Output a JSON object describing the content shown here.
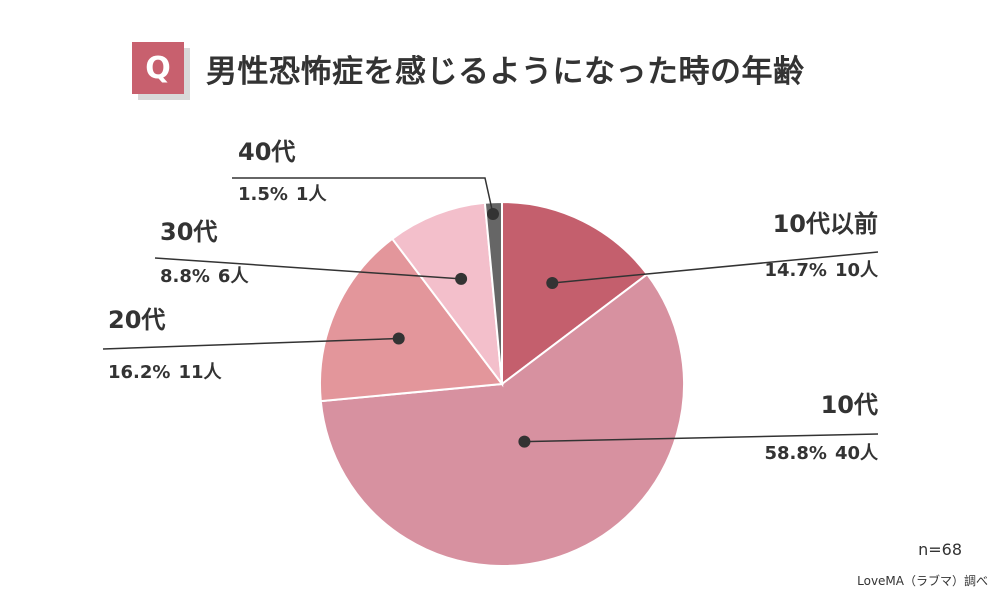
{
  "question_badge": "Q",
  "chart_data": {
    "type": "pie",
    "title": "男性恐怖症を感じるようになった時の年齢",
    "slices": [
      {
        "name": "10代以前",
        "percent": 14.7,
        "count": 10,
        "percent_label": "14.7%",
        "count_label": "10人",
        "color": "#c45f6d"
      },
      {
        "name": "10代",
        "percent": 58.8,
        "count": 40,
        "percent_label": "58.8%",
        "count_label": "40人",
        "color": "#d791a0"
      },
      {
        "name": "20代",
        "percent": 16.2,
        "count": 11,
        "percent_label": "16.2%",
        "count_label": "11人",
        "color": "#e3969b"
      },
      {
        "name": "30代",
        "percent": 8.8,
        "count": 6,
        "percent_label": "8.8%",
        "count_label": "6人",
        "color": "#f3bfcb"
      },
      {
        "name": "40代",
        "percent": 1.5,
        "count": 1,
        "percent_label": "1.5%",
        "count_label": "1人",
        "color": "#666666"
      }
    ],
    "start_angle_deg": 0,
    "direction": "clockwise"
  },
  "sample_size": "n=68",
  "source": "LoveMA（ラブマ）調べ"
}
